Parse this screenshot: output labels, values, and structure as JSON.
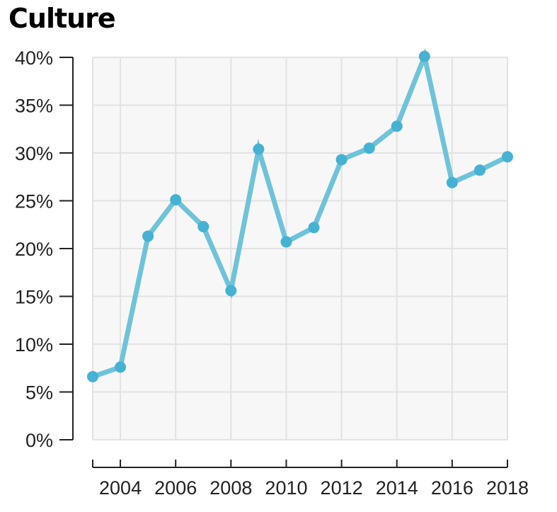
{
  "chart_data": {
    "type": "line",
    "title": "Culture",
    "xlabel": "",
    "ylabel": "",
    "x": [
      2003,
      2004,
      2005,
      2006,
      2007,
      2008,
      2009,
      2010,
      2011,
      2012,
      2013,
      2014,
      2015,
      2016,
      2017,
      2018
    ],
    "series": [
      {
        "name": "Culture",
        "values": [
          6.6,
          7.6,
          21.3,
          25.1,
          22.3,
          15.6,
          30.4,
          20.7,
          22.2,
          29.3,
          30.5,
          32.8,
          40.1,
          26.9,
          28.2,
          29.6
        ]
      }
    ],
    "xlim": [
      2003,
      2018
    ],
    "ylim": [
      0,
      40
    ],
    "x_ticks": [
      "2004",
      "2006",
      "2008",
      "2010",
      "2012",
      "2014",
      "2016",
      "2018"
    ],
    "y_ticks": [
      "0%",
      "5%",
      "10%",
      "15%",
      "20%",
      "25%",
      "30%",
      "35%",
      "40%"
    ],
    "grid": true,
    "colors": {
      "line": "#6ec3da",
      "point": "#45b2d3",
      "plot_background": "#f7f7f7",
      "grid": "#e2e2e2",
      "axis": "#222222"
    }
  }
}
